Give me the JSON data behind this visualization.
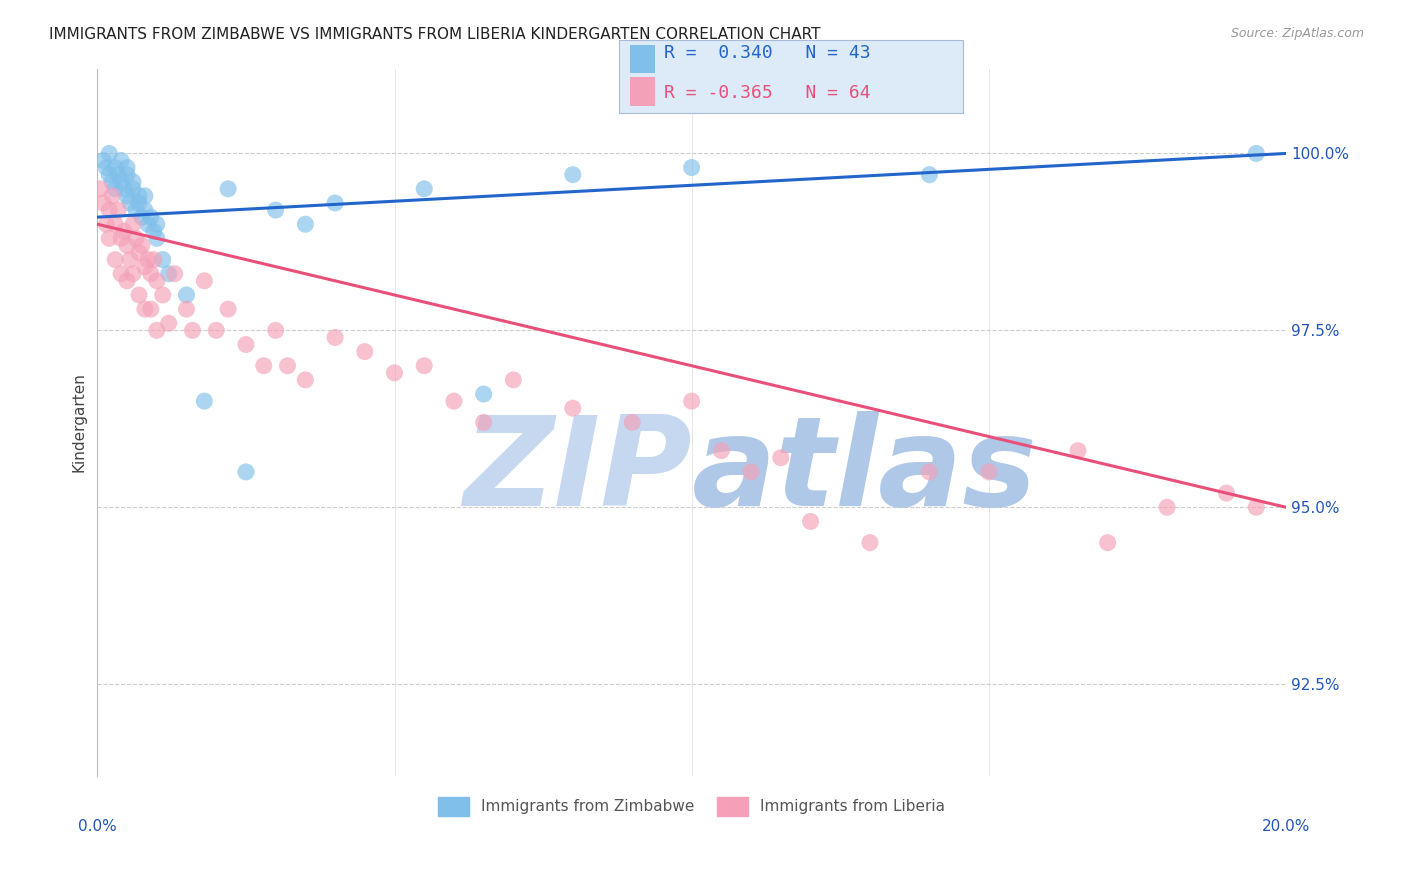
{
  "title": "IMMIGRANTS FROM ZIMBABWE VS IMMIGRANTS FROM LIBERIA KINDERGARTEN CORRELATION CHART",
  "source": "Source: ZipAtlas.com",
  "ylabel": "Kindergarten",
  "yticks": [
    92.5,
    95.0,
    97.5,
    100.0
  ],
  "ytick_labels": [
    "92.5%",
    "95.0%",
    "97.5%",
    "100.0%"
  ],
  "xlim": [
    0.0,
    20.0
  ],
  "ylim": [
    91.2,
    101.2
  ],
  "zimbabwe_color": "#7fbfea",
  "liberia_color": "#f4a0b8",
  "zimbabwe_R": 0.34,
  "zimbabwe_N": 43,
  "liberia_R": -0.365,
  "liberia_N": 64,
  "trend_blue": "#2266cc",
  "trend_pink": "#e8507a",
  "watermark_zip": "ZIP",
  "watermark_atlas": "atlas",
  "watermark_color_zip": "#c5d8f0",
  "watermark_color_atlas": "#b0c8e8",
  "zimbabwe_x": [
    0.1,
    0.15,
    0.2,
    0.2,
    0.25,
    0.3,
    0.3,
    0.35,
    0.4,
    0.4,
    0.45,
    0.5,
    0.5,
    0.5,
    0.55,
    0.6,
    0.6,
    0.65,
    0.7,
    0.7,
    0.75,
    0.8,
    0.8,
    0.85,
    0.9,
    0.95,
    1.0,
    1.0,
    1.1,
    1.2,
    1.5,
    1.8,
    2.2,
    2.5,
    3.0,
    3.5,
    4.0,
    5.5,
    6.5,
    8.0,
    10.0,
    14.0,
    19.5
  ],
  "zimbabwe_y": [
    99.9,
    99.8,
    99.7,
    100.0,
    99.6,
    99.8,
    99.5,
    99.7,
    99.6,
    99.9,
    99.5,
    99.4,
    99.7,
    99.8,
    99.3,
    99.5,
    99.6,
    99.2,
    99.4,
    99.3,
    99.1,
    99.2,
    99.4,
    99.0,
    99.1,
    98.9,
    99.0,
    98.8,
    98.5,
    98.3,
    98.0,
    96.5,
    99.5,
    95.5,
    99.2,
    99.0,
    99.3,
    99.5,
    96.6,
    99.7,
    99.8,
    99.7,
    100.0
  ],
  "liberia_x": [
    0.05,
    0.1,
    0.15,
    0.2,
    0.2,
    0.25,
    0.3,
    0.3,
    0.35,
    0.4,
    0.4,
    0.45,
    0.5,
    0.5,
    0.55,
    0.6,
    0.6,
    0.65,
    0.7,
    0.7,
    0.75,
    0.8,
    0.8,
    0.85,
    0.9,
    0.9,
    0.95,
    1.0,
    1.0,
    1.1,
    1.2,
    1.3,
    1.5,
    1.6,
    1.8,
    2.0,
    2.2,
    2.5,
    2.8,
    3.0,
    3.2,
    3.5,
    4.0,
    4.5,
    5.0,
    5.5,
    6.0,
    6.5,
    7.0,
    8.0,
    9.0,
    10.0,
    10.5,
    11.0,
    11.5,
    12.0,
    13.0,
    14.0,
    15.0,
    16.5,
    17.0,
    18.0,
    19.0,
    19.5
  ],
  "liberia_y": [
    99.5,
    99.3,
    99.0,
    99.2,
    98.8,
    99.4,
    99.0,
    98.5,
    99.2,
    98.8,
    98.3,
    98.9,
    98.7,
    98.2,
    98.5,
    98.3,
    99.0,
    98.8,
    98.6,
    98.0,
    98.7,
    98.4,
    97.8,
    98.5,
    98.3,
    97.8,
    98.5,
    98.2,
    97.5,
    98.0,
    97.6,
    98.3,
    97.8,
    97.5,
    98.2,
    97.5,
    97.8,
    97.3,
    97.0,
    97.5,
    97.0,
    96.8,
    97.4,
    97.2,
    96.9,
    97.0,
    96.5,
    96.2,
    96.8,
    96.4,
    96.2,
    96.5,
    95.8,
    95.5,
    95.7,
    94.8,
    94.5,
    95.5,
    95.5,
    95.8,
    94.5,
    95.0,
    95.2,
    95.0
  ]
}
